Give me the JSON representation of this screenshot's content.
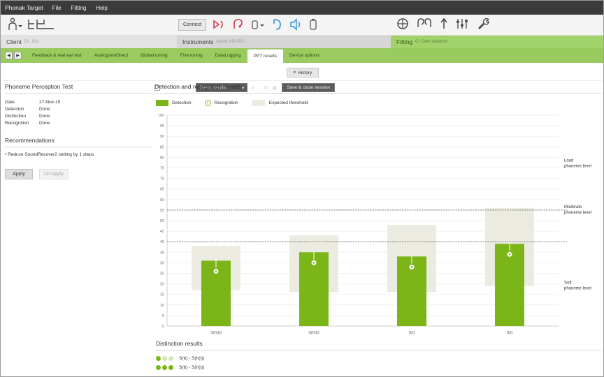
{
  "menubar": {
    "app_name": "Phonak Target",
    "menus": [
      "File",
      "Fitting",
      "Help"
    ],
    "client_view_label": "Client view",
    "select_media_label": "Select media...",
    "save_close_label": "Save & close session"
  },
  "toolbar": {
    "connect_label": "Connect"
  },
  "sections": {
    "client_label": "Client",
    "client_name": "Dr., Gui",
    "instruments_label": "Instruments",
    "instruments_model": "Naída V90-RIC",
    "fitting_label": "Fitting",
    "fitting_situation": "CI Calm situation"
  },
  "tabs": [
    {
      "label": "Feedback & real ear test"
    },
    {
      "label": "AudiogramDirect"
    },
    {
      "label": "Global tuning"
    },
    {
      "label": "Fine tuning"
    },
    {
      "label": "DataLogging"
    },
    {
      "label": "PPT results"
    },
    {
      "label": "Device options"
    }
  ],
  "history_label": "History",
  "left": {
    "title": "Phoneme Perception Test",
    "info": [
      {
        "key": "Date",
        "value": "27-Nov-15"
      },
      {
        "key": "Detection",
        "value": "Done"
      },
      {
        "key": "Distinction",
        "value": "Done"
      },
      {
        "key": "Recognition",
        "value": "Done"
      }
    ],
    "recommendations_title": "Recommendations",
    "recommendation": "• Reduce SoundRecover2 setting by 1 steps",
    "apply_label": "Apply",
    "unapply_label": "Un-apply"
  },
  "right": {
    "title": "Detection and recognition results",
    "legend": {
      "detection": "Detection",
      "recognition": "Recognition",
      "expected": "Expected threshold"
    },
    "distinction_title": "Distinction results",
    "distinction": [
      {
        "label": "S(tt)  -  S(h(t))",
        "dots": [
          1,
          0,
          0
        ]
      },
      {
        "label": "S(tt)  -  S(h(t))",
        "dots": [
          1,
          1,
          1
        ]
      }
    ]
  },
  "colors": {
    "accent_green": "#7cb518",
    "tab_green": "#99cb5e",
    "expected_band": "#ebebe2",
    "menubar": "#3b3b3b"
  },
  "chart_data": {
    "type": "bar",
    "ylim": [
      0,
      100
    ],
    "yticks": [
      0,
      5,
      10,
      15,
      20,
      25,
      30,
      35,
      40,
      45,
      50,
      55,
      60,
      65,
      70,
      75,
      80,
      85,
      90,
      95,
      100
    ],
    "categories": [
      "S(h(t))",
      "S(h(t))",
      "S(t)",
      "S(t)"
    ],
    "series": [
      {
        "name": "Detection",
        "values": [
          31,
          35,
          33,
          39
        ]
      },
      {
        "name": "Recognition",
        "values": [
          26,
          30,
          28,
          34
        ]
      }
    ],
    "expected_threshold": [
      [
        17,
        38
      ],
      [
        16,
        43
      ],
      [
        16,
        48
      ],
      [
        19,
        56
      ]
    ],
    "reference_lines": [
      {
        "value": 55,
        "label": "Moderate phoneme level"
      },
      {
        "value": 40,
        "label": "Moderate phoneme level"
      }
    ],
    "side_labels": [
      "Loud phoneme level",
      "Moderate phoneme level",
      "Soft phoneme level"
    ],
    "grid": true,
    "legend": "top-left"
  }
}
